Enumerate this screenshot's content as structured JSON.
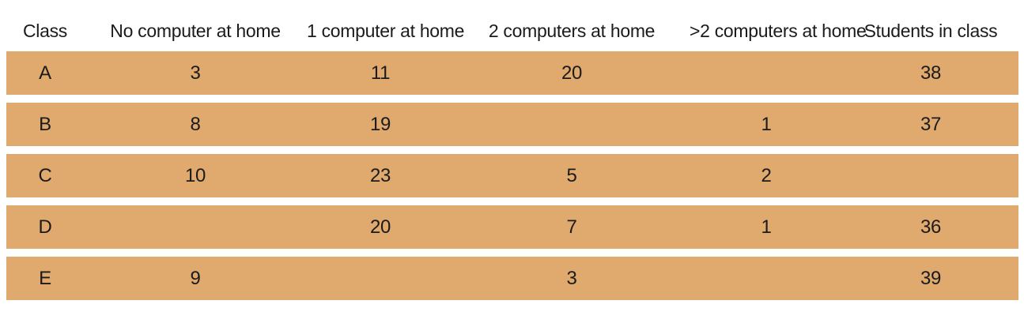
{
  "chart_data": {
    "type": "table",
    "columns": [
      "Class",
      "No computer at home",
      "1 computer at home",
      "2 computers at home",
      ">2 computers at home",
      "Students in class"
    ],
    "rows": [
      [
        "A",
        "3",
        "11",
        "20",
        "",
        "38"
      ],
      [
        "B",
        "8",
        "19",
        "",
        "1",
        "37"
      ],
      [
        "C",
        "10",
        "23",
        "5",
        "2",
        ""
      ],
      [
        "D",
        "",
        "20",
        "7",
        "1",
        "36"
      ],
      [
        "E",
        "9",
        "",
        "3",
        "",
        "39"
      ]
    ],
    "layout_hints": {
      "header_background": "#ffffff",
      "row_background": "#e0a96d",
      "text_color": "#1b1b1b",
      "blank_cells_present": true
    }
  },
  "colors": {
    "row_background": "#e0a96d",
    "page_background": "#ffffff",
    "text": "#1b1b1b"
  }
}
